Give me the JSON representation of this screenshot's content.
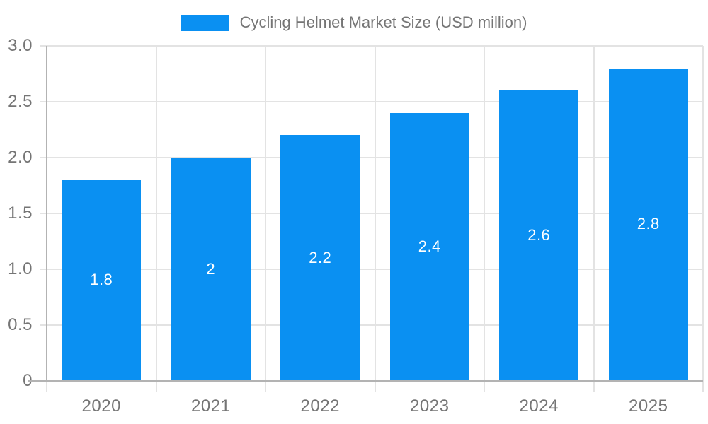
{
  "chart_data": {
    "type": "bar",
    "title": "Cycling Helmet Market Size (USD million)",
    "legend_position": "top",
    "categories": [
      "2020",
      "2021",
      "2022",
      "2023",
      "2024",
      "2025"
    ],
    "values": [
      1.8,
      2,
      2.2,
      2.4,
      2.6,
      2.8
    ],
    "bar_labels": [
      "1.8",
      "2",
      "2.2",
      "2.4",
      "2.6",
      "2.8"
    ],
    "xlabel": "",
    "ylabel": "",
    "ylim": [
      0,
      3
    ],
    "yticks": [
      0,
      0.5,
      1,
      1.5,
      2,
      2.5,
      3
    ],
    "ytick_labels": [
      "0",
      "0.5",
      "1.0",
      "1.5",
      "2.0",
      "2.5",
      "3.0"
    ],
    "grid": true,
    "colors": {
      "bar": "#0a90f2",
      "bar_label_text": "#ffffff",
      "axis_line": "#b3b3b3",
      "gridline": "#e3e3e3",
      "tick_label": "#757575",
      "legend_text": "#757575",
      "background": "#ffffff"
    }
  }
}
